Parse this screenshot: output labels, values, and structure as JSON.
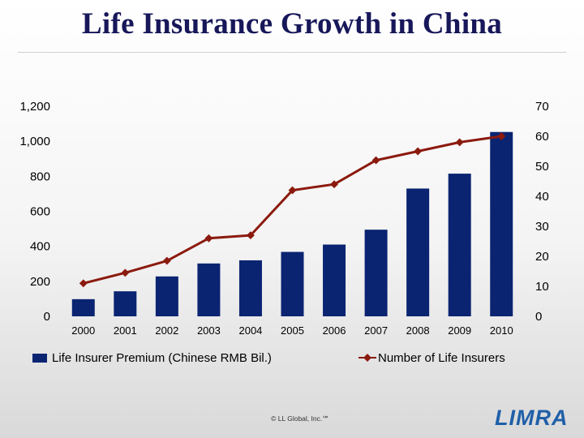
{
  "slide": {
    "title": "Life Insurance Growth in China",
    "copyright": "© LL Global, Inc.℠",
    "logo_text": "LIMRA"
  },
  "colors": {
    "bar": "#0a2472",
    "line": "#8b1a0e",
    "title": "#17175a",
    "logo": "#1f5fa8"
  },
  "chart_data": {
    "type": "bar",
    "categories": [
      "2000",
      "2001",
      "2002",
      "2003",
      "2004",
      "2005",
      "2006",
      "2007",
      "2008",
      "2009",
      "2010"
    ],
    "series": [
      {
        "name": "Life Insurer Premium (Chinese RMB Bil.)",
        "kind": "bar",
        "axis": "left",
        "values": [
          98,
          143,
          228,
          302,
          320,
          368,
          410,
          495,
          730,
          815,
          1053
        ]
      },
      {
        "name": "Number of Life Insurers",
        "kind": "line",
        "axis": "right",
        "values": [
          11,
          14.5,
          18.5,
          26,
          27,
          42,
          44,
          52,
          55,
          58,
          60
        ]
      }
    ],
    "y_left": {
      "min": 0,
      "max": 1200,
      "ticks": [
        "0",
        "200",
        "400",
        "600",
        "800",
        "1,000",
        "1,200"
      ]
    },
    "y_right": {
      "min": 0,
      "max": 70,
      "ticks": [
        "0",
        "10",
        "20",
        "30",
        "40",
        "50",
        "60",
        "70"
      ]
    },
    "legend_position": "bottom",
    "grid": false
  }
}
